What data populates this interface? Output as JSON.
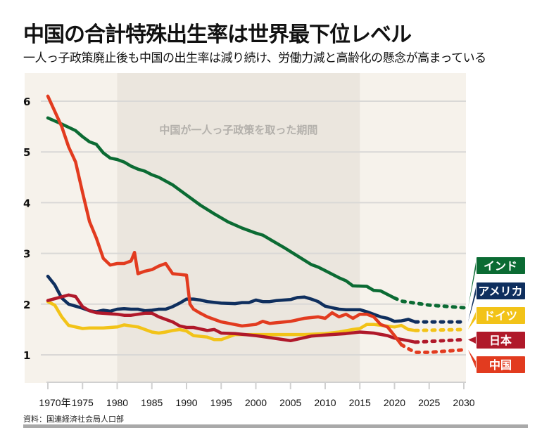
{
  "title": "中国の合計特殊出生率は世界最下位レベル",
  "subtitle": "一人っ子政策廃止後も中国の出生率は減り続け、労働力減と高齢化の懸念が高まっている",
  "source": "資料：国連経済社会局人口部",
  "chart_data": {
    "type": "line",
    "title": "中国の合計特殊出生率は世界最下位レベル",
    "xlim": [
      1970,
      2030
    ],
    "ylim": [
      0.55,
      6.5
    ],
    "yticks": [
      "1",
      "2",
      "3",
      "4",
      "5",
      "6"
    ],
    "xticks": [
      "1970年",
      "1975",
      "1980",
      "1985",
      "1990",
      "1995",
      "2000",
      "2005",
      "2010",
      "2015",
      "2020",
      "2025",
      "2030"
    ],
    "grid": true,
    "shaded_period": {
      "label": "中国が一人っ子政策を取った期間",
      "start": 1980,
      "end": 2015,
      "color": "#ebe6de"
    },
    "legend_placement": "right",
    "series": [
      {
        "name": "インド",
        "color": "#0b6b33",
        "actual": [
          [
            1970,
            5.67
          ],
          [
            1972,
            5.55
          ],
          [
            1974,
            5.42
          ],
          [
            1975,
            5.3
          ],
          [
            1976,
            5.2
          ],
          [
            1977,
            5.15
          ],
          [
            1978,
            4.98
          ],
          [
            1979,
            4.88
          ],
          [
            1980,
            4.85
          ],
          [
            1981,
            4.8
          ],
          [
            1982,
            4.72
          ],
          [
            1983,
            4.66
          ],
          [
            1984,
            4.62
          ],
          [
            1985,
            4.55
          ],
          [
            1986,
            4.5
          ],
          [
            1988,
            4.35
          ],
          [
            1990,
            4.15
          ],
          [
            1992,
            3.95
          ],
          [
            1994,
            3.78
          ],
          [
            1996,
            3.62
          ],
          [
            1998,
            3.5
          ],
          [
            2000,
            3.4
          ],
          [
            2001,
            3.36
          ],
          [
            2002,
            3.28
          ],
          [
            2004,
            3.12
          ],
          [
            2006,
            2.95
          ],
          [
            2008,
            2.78
          ],
          [
            2009,
            2.73
          ],
          [
            2010,
            2.66
          ],
          [
            2012,
            2.52
          ],
          [
            2013,
            2.46
          ],
          [
            2014,
            2.36
          ],
          [
            2016,
            2.35
          ],
          [
            2017,
            2.27
          ],
          [
            2018,
            2.26
          ],
          [
            2020,
            2.12
          ]
        ],
        "projection": [
          [
            2020,
            2.12
          ],
          [
            2021,
            2.06
          ],
          [
            2025,
            1.98
          ],
          [
            2030,
            1.93
          ]
        ]
      },
      {
        "name": "アメリカ",
        "color": "#0f2f5e",
        "actual": [
          [
            1970,
            2.55
          ],
          [
            1971,
            2.38
          ],
          [
            1972,
            2.12
          ],
          [
            1973,
            2.0
          ],
          [
            1975,
            1.92
          ],
          [
            1976,
            1.87
          ],
          [
            1977,
            1.85
          ],
          [
            1978,
            1.88
          ],
          [
            1979,
            1.86
          ],
          [
            1980,
            1.9
          ],
          [
            1981,
            1.91
          ],
          [
            1982,
            1.9
          ],
          [
            1983,
            1.9
          ],
          [
            1984,
            1.87
          ],
          [
            1985,
            1.88
          ],
          [
            1986,
            1.9
          ],
          [
            1987,
            1.9
          ],
          [
            1988,
            1.95
          ],
          [
            1989,
            2.02
          ],
          [
            1990,
            2.1
          ],
          [
            1991,
            2.1
          ],
          [
            1992,
            2.08
          ],
          [
            1993,
            2.05
          ],
          [
            1995,
            2.02
          ],
          [
            1997,
            2.01
          ],
          [
            1998,
            2.03
          ],
          [
            1999,
            2.03
          ],
          [
            2000,
            2.08
          ],
          [
            2001,
            2.05
          ],
          [
            2002,
            2.05
          ],
          [
            2003,
            2.07
          ],
          [
            2005,
            2.09
          ],
          [
            2006,
            2.13
          ],
          [
            2007,
            2.14
          ],
          [
            2008,
            2.1
          ],
          [
            2009,
            2.05
          ],
          [
            2010,
            1.96
          ],
          [
            2011,
            1.93
          ],
          [
            2012,
            1.9
          ],
          [
            2013,
            1.89
          ],
          [
            2015,
            1.89
          ],
          [
            2016,
            1.85
          ],
          [
            2017,
            1.8
          ],
          [
            2018,
            1.75
          ],
          [
            2019,
            1.72
          ],
          [
            2020,
            1.66
          ],
          [
            2021,
            1.67
          ],
          [
            2022,
            1.7
          ],
          [
            2023,
            1.65
          ]
        ],
        "projection": [
          [
            2023,
            1.65
          ],
          [
            2030,
            1.65
          ]
        ]
      },
      {
        "name": "ドイツ",
        "color": "#f2c318",
        "actual": [
          [
            1970,
            2.05
          ],
          [
            1971,
            1.98
          ],
          [
            1972,
            1.75
          ],
          [
            1973,
            1.58
          ],
          [
            1975,
            1.52
          ],
          [
            1976,
            1.53
          ],
          [
            1978,
            1.53
          ],
          [
            1980,
            1.55
          ],
          [
            1981,
            1.59
          ],
          [
            1983,
            1.55
          ],
          [
            1984,
            1.5
          ],
          [
            1985,
            1.45
          ],
          [
            1986,
            1.43
          ],
          [
            1987,
            1.45
          ],
          [
            1988,
            1.48
          ],
          [
            1989,
            1.5
          ],
          [
            1990,
            1.47
          ],
          [
            1991,
            1.38
          ],
          [
            1993,
            1.35
          ],
          [
            1994,
            1.3
          ],
          [
            1995,
            1.3
          ],
          [
            1996,
            1.35
          ],
          [
            1997,
            1.4
          ],
          [
            2000,
            1.4
          ],
          [
            2005,
            1.4
          ],
          [
            2007,
            1.4
          ],
          [
            2010,
            1.42
          ],
          [
            2012,
            1.45
          ],
          [
            2014,
            1.5
          ],
          [
            2015,
            1.52
          ],
          [
            2016,
            1.6
          ],
          [
            2017,
            1.6
          ],
          [
            2020,
            1.55
          ],
          [
            2021,
            1.58
          ],
          [
            2022,
            1.5
          ],
          [
            2023,
            1.48
          ]
        ],
        "projection": [
          [
            2023,
            1.48
          ],
          [
            2030,
            1.5
          ]
        ]
      },
      {
        "name": "日本",
        "color": "#b0192a",
        "actual": [
          [
            1970,
            2.07
          ],
          [
            1973,
            2.18
          ],
          [
            1974,
            2.15
          ],
          [
            1975,
            1.95
          ],
          [
            1976,
            1.87
          ],
          [
            1977,
            1.83
          ],
          [
            1980,
            1.8
          ],
          [
            1981,
            1.78
          ],
          [
            1982,
            1.78
          ],
          [
            1983,
            1.8
          ],
          [
            1984,
            1.82
          ],
          [
            1985,
            1.82
          ],
          [
            1986,
            1.75
          ],
          [
            1988,
            1.65
          ],
          [
            1989,
            1.57
          ],
          [
            1990,
            1.54
          ],
          [
            1991,
            1.54
          ],
          [
            1993,
            1.48
          ],
          [
            1994,
            1.5
          ],
          [
            1995,
            1.43
          ],
          [
            1997,
            1.42
          ],
          [
            2000,
            1.38
          ],
          [
            2003,
            1.32
          ],
          [
            2005,
            1.28
          ],
          [
            2008,
            1.37
          ],
          [
            2010,
            1.39
          ],
          [
            2013,
            1.42
          ],
          [
            2015,
            1.45
          ],
          [
            2017,
            1.43
          ],
          [
            2019,
            1.38
          ],
          [
            2020,
            1.33
          ],
          [
            2022,
            1.28
          ],
          [
            2023,
            1.25
          ]
        ],
        "projection": [
          [
            2023,
            1.25
          ],
          [
            2030,
            1.3
          ]
        ]
      },
      {
        "name": "中国",
        "color": "#e23b1f",
        "actual": [
          [
            1970,
            6.1
          ],
          [
            1972,
            5.5
          ],
          [
            1973,
            5.1
          ],
          [
            1974,
            4.8
          ],
          [
            1975,
            4.2
          ],
          [
            1976,
            3.63
          ],
          [
            1977,
            3.3
          ],
          [
            1978,
            2.9
          ],
          [
            1979,
            2.77
          ],
          [
            1980,
            2.8
          ],
          [
            1981,
            2.8
          ],
          [
            1982,
            2.85
          ],
          [
            1982.5,
            3.02
          ],
          [
            1983,
            2.6
          ],
          [
            1984,
            2.65
          ],
          [
            1985,
            2.68
          ],
          [
            1986,
            2.75
          ],
          [
            1987,
            2.8
          ],
          [
            1988,
            2.6
          ],
          [
            1990,
            2.57
          ],
          [
            1990.5,
            2.0
          ],
          [
            1991,
            1.9
          ],
          [
            1992,
            1.82
          ],
          [
            1993,
            1.75
          ],
          [
            1995,
            1.65
          ],
          [
            1998,
            1.57
          ],
          [
            2000,
            1.6
          ],
          [
            2001,
            1.66
          ],
          [
            2002,
            1.62
          ],
          [
            2005,
            1.66
          ],
          [
            2007,
            1.72
          ],
          [
            2009,
            1.75
          ],
          [
            2010,
            1.72
          ],
          [
            2011,
            1.83
          ],
          [
            2012,
            1.75
          ],
          [
            2013,
            1.8
          ],
          [
            2014,
            1.72
          ],
          [
            2015,
            1.8
          ],
          [
            2016,
            1.8
          ],
          [
            2017,
            1.75
          ],
          [
            2018,
            1.6
          ],
          [
            2019,
            1.55
          ],
          [
            2020,
            1.38
          ],
          [
            2021,
            1.2
          ]
        ],
        "projection": [
          [
            2021,
            1.2
          ],
          [
            2022,
            1.12
          ],
          [
            2023,
            1.05
          ],
          [
            2025,
            1.05
          ],
          [
            2030,
            1.1
          ]
        ]
      }
    ]
  }
}
